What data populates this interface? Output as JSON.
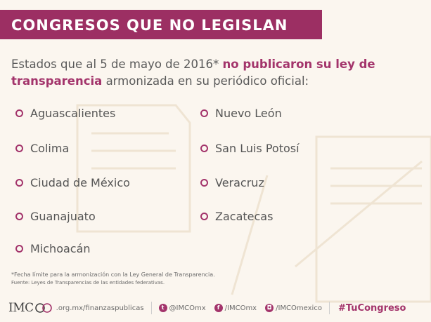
{
  "banner": {
    "title": "CONGRESOS QUE NO LEGISLAN"
  },
  "intro": {
    "part1": "Estados que al 5 de mayo de 2016* ",
    "highlight": "no publicaron su ley de transparencia",
    "part2": " armonizada en su periódico oficial:"
  },
  "states_left": [
    "Aguascalientes",
    "Colima",
    "Ciudad de México",
    "Guanajuato",
    "Michoacán"
  ],
  "states_right": [
    "Nuevo León",
    "San Luis Potosí",
    "Veracruz",
    "Zacatecas"
  ],
  "note": {
    "footnote": "*Fecha límite para la armonización con la Ley General de Transparencia.",
    "source": "Fuente: Leyes de Transparencias de las entidades federativas."
  },
  "footer": {
    "logo_text": "IMC",
    "site": ".org.mx/finanzaspublicas",
    "twitter": "@IMCOmx",
    "facebook": "/IMCOmx",
    "instagram": "/IMCOmexico",
    "hashtag": "#TuCongreso",
    "accent_color": "#a3346b"
  }
}
